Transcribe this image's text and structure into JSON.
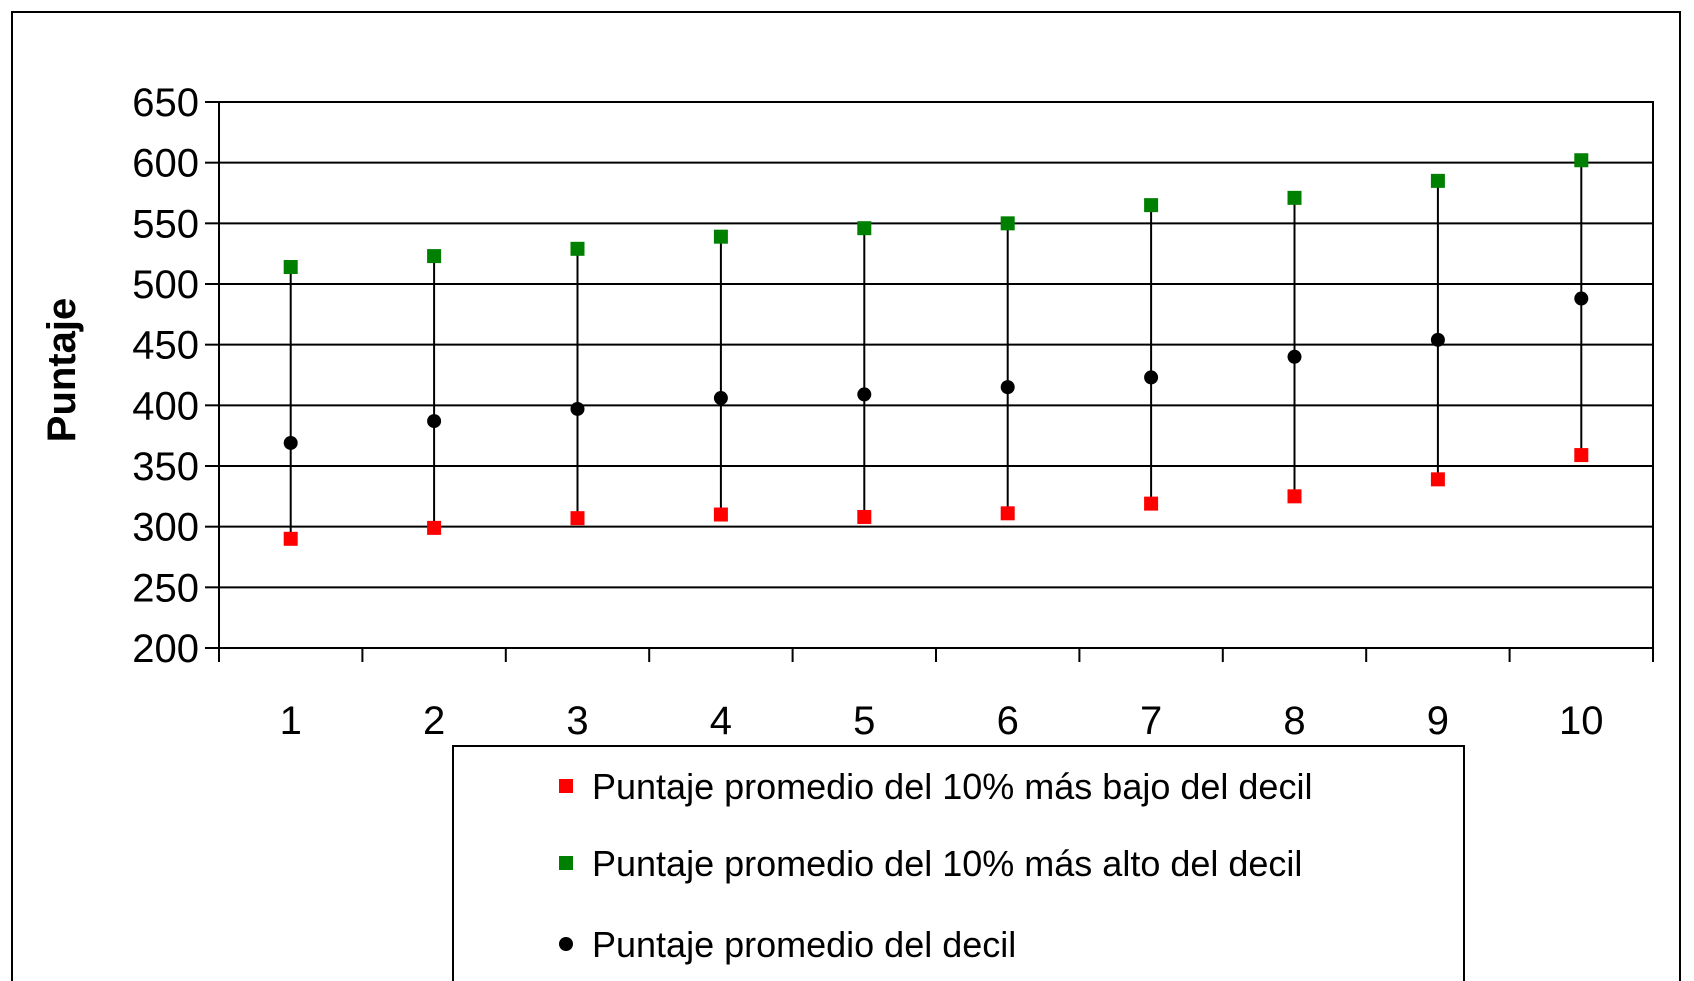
{
  "chart_data": {
    "type": "scatter",
    "title": "",
    "xlabel": "",
    "ylabel": "Puntaje",
    "ylim": [
      200,
      650
    ],
    "yticks": [
      200,
      250,
      300,
      350,
      400,
      450,
      500,
      550,
      600,
      650
    ],
    "categories": [
      "1",
      "2",
      "3",
      "4",
      "5",
      "6",
      "7",
      "8",
      "9",
      "10"
    ],
    "grid": "horizontal",
    "legend_position": "bottom",
    "series": [
      {
        "name": "Puntaje promedio del 10% más bajo del decil",
        "marker": "square",
        "color": "#ff0000",
        "values": [
          290,
          299,
          307,
          310,
          308,
          311,
          319,
          325,
          339,
          359
        ]
      },
      {
        "name": "Puntaje promedio del 10% más alto del decil",
        "marker": "square",
        "color": "#008000",
        "values": [
          514,
          523,
          529,
          539,
          546,
          550,
          565,
          571,
          585,
          602
        ]
      },
      {
        "name": "Puntaje promedio del decil",
        "marker": "circle",
        "color": "#000000",
        "values": [
          369,
          387,
          397,
          406,
          409,
          415,
          423,
          440,
          454,
          488
        ]
      }
    ]
  }
}
